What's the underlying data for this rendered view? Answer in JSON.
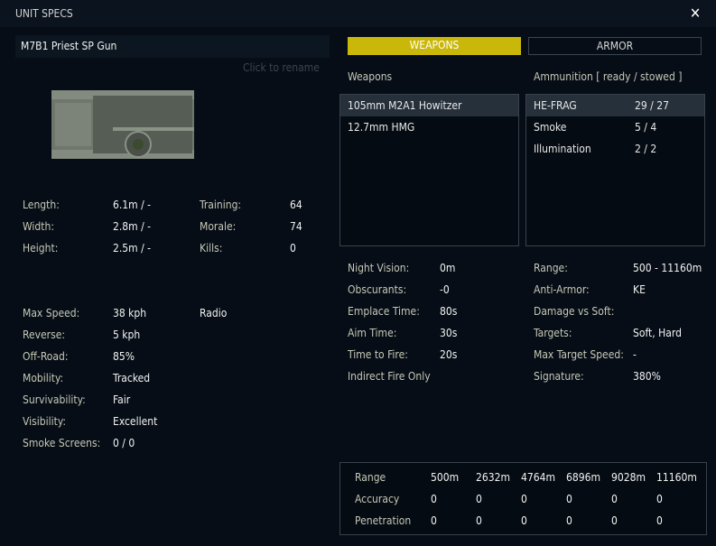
{
  "window": {
    "title": "UNIT SPECS",
    "close": "✕"
  },
  "unit": {
    "name": "M7B1 Priest SP Gun",
    "rename_hint": "Click to rename"
  },
  "stats_left": [
    {
      "label": "Length:",
      "value": "6.1m / -"
    },
    {
      "label": "Width:",
      "value": "2.8m / -"
    },
    {
      "label": "Height:",
      "value": "2.5m / -"
    }
  ],
  "stats_crew": [
    {
      "label": "Training:",
      "value": "64"
    },
    {
      "label": "Morale:",
      "value": "74"
    },
    {
      "label": "Kills:",
      "value": "0"
    }
  ],
  "mobility": [
    {
      "label": "Max Speed:",
      "value": "38 kph"
    },
    {
      "label": "Reverse:",
      "value": "5 kph"
    },
    {
      "label": "Off-Road:",
      "value": "85%"
    },
    {
      "label": "Mobility:",
      "value": "Tracked"
    },
    {
      "label": "Survivability:",
      "value": "Fair"
    },
    {
      "label": "Visibility:",
      "value": "Excellent"
    },
    {
      "label": "Smoke Screens:",
      "value": "0 / 0"
    }
  ],
  "radio": "Radio",
  "tabs": {
    "weapons": "WEAPONS",
    "armor": "ARMOR"
  },
  "weapons": {
    "heading": "Weapons",
    "items": [
      "105mm M2A1 Howitzer",
      "12.7mm HMG"
    ]
  },
  "ammo": {
    "heading": "Ammunition [ ready / stowed ]",
    "items": [
      {
        "name": "HE-FRAG",
        "count": "29 / 27"
      },
      {
        "name": "Smoke",
        "count": "5 / 4"
      },
      {
        "name": "Illumination",
        "count": "2 / 2"
      }
    ]
  },
  "weapon_stats": [
    {
      "label": "Night Vision:",
      "value": "0m"
    },
    {
      "label": "Obscurants:",
      "value": "-0"
    },
    {
      "label": "Emplace Time:",
      "value": "80s"
    },
    {
      "label": "Aim Time:",
      "value": "30s"
    },
    {
      "label": "Time to Fire:",
      "value": "20s"
    },
    {
      "label": "Indirect Fire Only",
      "value": ""
    }
  ],
  "ammo_stats": [
    {
      "label": "Range:",
      "value": "500 - 11160m"
    },
    {
      "label": "Anti-Armor:",
      "value": "KE"
    },
    {
      "label": "Damage vs Soft:",
      "value": ""
    },
    {
      "label": "Targets:",
      "value": "Soft, Hard"
    },
    {
      "label": "Max Target Speed:",
      "value": "-"
    },
    {
      "label": "Signature:",
      "value": "380%"
    }
  ],
  "range_table": {
    "rows": [
      {
        "label": "Range",
        "values": [
          "500m",
          "2632m",
          "4764m",
          "6896m",
          "9028m",
          "11160m"
        ]
      },
      {
        "label": "Accuracy",
        "values": [
          "0",
          "0",
          "0",
          "0",
          "0",
          "0"
        ]
      },
      {
        "label": "Penetration",
        "values": [
          "0",
          "0",
          "0",
          "0",
          "0",
          "0"
        ]
      }
    ]
  }
}
